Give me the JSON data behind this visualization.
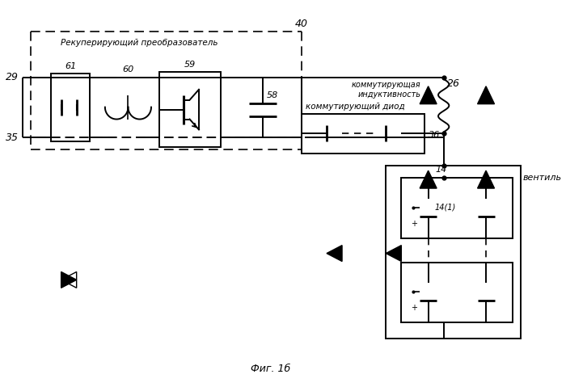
{
  "title": "Фиг. 1б",
  "bg_color": "#ffffff",
  "lc": "#000000",
  "label_40": "40",
  "label_29": "29",
  "label_35": "35",
  "label_61": "61",
  "label_60": "60",
  "label_59": "59",
  "label_58": "58",
  "label_26": "26",
  "label_14": "14",
  "label_36": "36",
  "label_recuperating": "Рекуперирующий преобразователь",
  "label_commut_ind": "коммутирующая\nиндуктивность",
  "label_commut_diode": "коммутирующий диод",
  "label_valve": "вентиль",
  "label_14_1": "14(1)"
}
